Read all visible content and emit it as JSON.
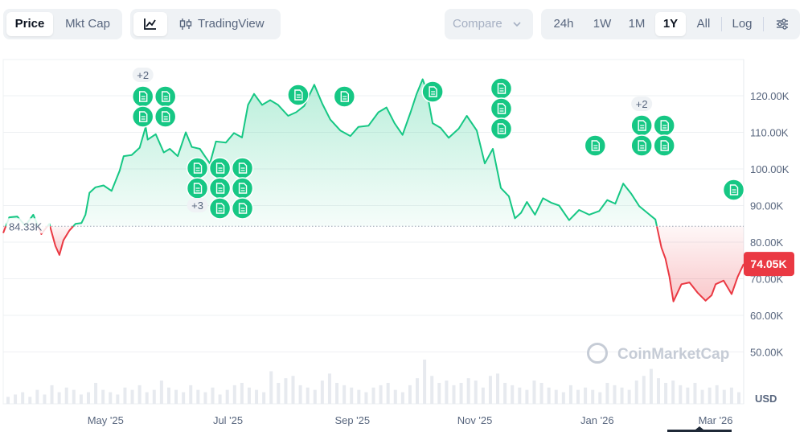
{
  "toolbar": {
    "price_label": "Price",
    "mktcap_label": "Mkt Cap",
    "line_icon": "line-chart-icon",
    "tradingview_icon": "candlestick-icon",
    "tradingview_label": "TradingView",
    "compare_label": "Compare",
    "compare_icon": "chevron-down-icon",
    "ranges": [
      "24h",
      "1W",
      "1M",
      "1Y",
      "All"
    ],
    "active_range": "1Y",
    "log_label": "Log",
    "settings_icon": "sliders-icon"
  },
  "watermark": "CoinMarketCap",
  "chart_data": {
    "type": "line",
    "currency": "USD",
    "baseline": 84330,
    "baseline_label": "84.33K",
    "current_label": "74.05K",
    "y_ticks": [
      "120.00K",
      "110.00K",
      "100.00K",
      "90.00K",
      "80.00K",
      "70.00K",
      "60.00K",
      "50.00K"
    ],
    "y_tick_values": [
      120000,
      110000,
      100000,
      90000,
      80000,
      70000,
      60000,
      50000
    ],
    "x_ticks": [
      "May '25",
      "Jul '25",
      "Sep '25",
      "Nov '25",
      "Jan '26",
      "Mar '26"
    ],
    "x_tick_dates": [
      "2025-05-01",
      "2025-07-01",
      "2025-09-01",
      "2025-11-01",
      "2026-01-01",
      "2026-03-01"
    ],
    "x_range": [
      "2025-03-11",
      "2026-03-15"
    ],
    "ylim": [
      40000,
      130000
    ],
    "colors": {
      "up": "#16c784",
      "down": "#ea3943"
    },
    "series": [
      {
        "x": [
          "2025-03-11",
          "2025-03-14",
          "2025-03-18",
          "2025-03-22",
          "2025-03-26",
          "2025-03-30",
          "2025-04-03",
          "2025-04-06",
          "2025-04-08",
          "2025-04-10",
          "2025-04-13",
          "2025-04-16",
          "2025-04-19",
          "2025-04-21",
          "2025-04-23",
          "2025-04-26",
          "2025-04-30",
          "2025-05-04",
          "2025-05-08",
          "2025-05-10",
          "2025-05-14",
          "2025-05-18",
          "2025-05-21",
          "2025-05-22",
          "2025-05-26",
          "2025-05-30",
          "2025-06-02",
          "2025-06-06",
          "2025-06-10",
          "2025-06-13",
          "2025-06-17",
          "2025-06-22",
          "2025-06-25",
          "2025-06-30",
          "2025-07-04",
          "2025-07-08",
          "2025-07-11",
          "2025-07-14",
          "2025-07-18",
          "2025-07-22",
          "2025-07-26",
          "2025-07-31",
          "2025-08-04",
          "2025-08-08",
          "2025-08-13",
          "2025-08-17",
          "2025-08-21",
          "2025-08-26",
          "2025-08-31",
          "2025-09-04",
          "2025-09-09",
          "2025-09-14",
          "2025-09-18",
          "2025-09-22",
          "2025-09-26",
          "2025-09-30",
          "2025-10-03",
          "2025-10-06",
          "2025-10-08",
          "2025-10-11",
          "2025-10-15",
          "2025-10-19",
          "2025-10-24",
          "2025-10-28",
          "2025-11-02",
          "2025-11-06",
          "2025-11-10",
          "2025-11-14",
          "2025-11-18",
          "2025-11-21",
          "2025-11-24",
          "2025-11-27",
          "2025-12-01",
          "2025-12-05",
          "2025-12-09",
          "2025-12-13",
          "2025-12-18",
          "2025-12-23",
          "2025-12-28",
          "2026-01-02",
          "2026-01-06",
          "2026-01-10",
          "2026-01-14",
          "2026-01-18",
          "2026-01-22",
          "2026-01-26",
          "2026-01-30",
          "2026-02-02",
          "2026-02-04",
          "2026-02-06",
          "2026-02-08",
          "2026-02-12",
          "2026-02-16",
          "2026-02-20",
          "2026-02-24",
          "2026-02-27",
          "2026-03-01",
          "2026-03-05",
          "2026-03-09",
          "2026-03-12",
          "2026-03-15"
        ],
        "y": [
          82500,
          86800,
          87000,
          84500,
          87500,
          82200,
          85000,
          79000,
          76500,
          80500,
          83200,
          85000,
          85200,
          87500,
          93500,
          95000,
          95500,
          94000,
          99500,
          103500,
          103800,
          105800,
          111500,
          108000,
          109500,
          104500,
          105500,
          103500,
          110000,
          106000,
          105500,
          101500,
          107500,
          107200,
          109800,
          108600,
          117500,
          120500,
          117500,
          118800,
          117500,
          114500,
          115500,
          117200,
          123000,
          117800,
          113500,
          110500,
          109000,
          111500,
          111800,
          115500,
          116800,
          112500,
          109300,
          115500,
          120500,
          124500,
          121500,
          112500,
          111200,
          108500,
          111000,
          114500,
          110500,
          101500,
          105500,
          94800,
          92500,
          86500,
          88000,
          91000,
          87500,
          92000,
          90800,
          90000,
          86000,
          88800,
          87500,
          88500,
          91500,
          90500,
          96000,
          93200,
          89800,
          88000,
          86200,
          78500,
          75500,
          70500,
          63800,
          68500,
          69000,
          66200,
          64000,
          65500,
          68500,
          69500,
          65800,
          70500,
          74050
        ]
      }
    ],
    "annotations": [
      {
        "x": "2025-05-22",
        "count": 4,
        "more": "+2"
      },
      {
        "x": "2025-06-27",
        "count": 8,
        "more": "+3"
      },
      {
        "x": "2025-08-05",
        "count": 1
      },
      {
        "x": "2025-08-28",
        "count": 1
      },
      {
        "x": "2025-10-11",
        "count": 1
      },
      {
        "x": "2025-11-15",
        "count": 3
      },
      {
        "x": "2025-12-31",
        "count": 1
      },
      {
        "x": "2026-01-28",
        "count": 4,
        "more": "+2"
      },
      {
        "x": "2026-03-10",
        "count": 1
      }
    ],
    "annotation_icon": "news-document-icon",
    "volume": [
      3,
      4,
      5,
      3,
      6,
      4,
      8,
      5,
      7,
      6,
      4,
      5,
      9,
      6,
      5,
      4,
      7,
      6,
      8,
      5,
      6,
      10,
      7,
      6,
      5,
      8,
      6,
      5,
      7,
      4,
      6,
      8,
      9,
      7,
      6,
      5,
      14,
      9,
      11,
      12,
      8,
      7,
      6,
      10,
      13,
      9,
      8,
      7,
      6,
      5,
      7,
      8,
      9,
      6,
      5,
      8,
      11,
      19,
      12,
      9,
      10,
      8,
      9,
      11,
      10,
      7,
      12,
      13,
      9,
      8,
      7,
      6,
      10,
      9,
      7,
      6,
      5,
      8,
      6,
      7,
      6,
      5,
      9,
      8,
      7,
      6,
      10,
      12,
      15,
      11,
      9,
      10,
      8,
      7,
      9,
      6,
      7,
      8,
      6,
      7,
      5
    ]
  }
}
